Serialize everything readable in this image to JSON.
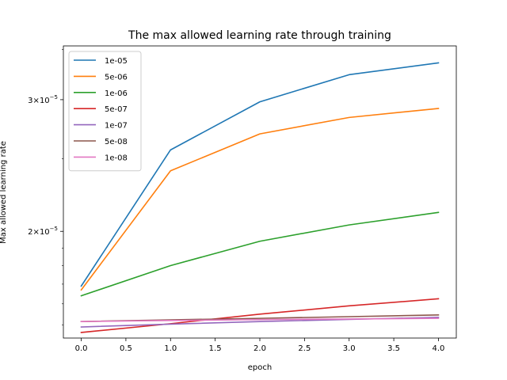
{
  "chart_data": {
    "type": "line",
    "title": "The max allowed learning rate through training",
    "xlabel": "epoch",
    "ylabel": "Max allowed learning rate",
    "x": [
      0,
      1,
      2,
      3,
      4
    ],
    "xlim": [
      -0.2,
      4.2
    ],
    "xticks": [
      0.0,
      0.5,
      1.0,
      1.5,
      2.0,
      2.5,
      3.0,
      3.5,
      4.0
    ],
    "xtick_labels": [
      "0.0",
      "0.5",
      "1.0",
      "1.5",
      "2.0",
      "2.5",
      "3.0",
      "3.5",
      "4.0"
    ],
    "yscale": "log",
    "ylim": [
      1.44e-05,
      3.54e-05
    ],
    "yticks": [
      2e-05,
      3e-05
    ],
    "ytick_labels": [
      {
        "base": "2",
        "times": "×",
        "ten": "10",
        "exp": "−5"
      },
      {
        "base": "3",
        "times": "×",
        "ten": "10",
        "exp": "−5"
      }
    ],
    "grid": false,
    "legend": "top-left",
    "series": [
      {
        "name": "1e-05",
        "color": "#1f77b4",
        "values": [
          1.69e-05,
          2.57e-05,
          2.98e-05,
          3.24e-05,
          3.36e-05
        ]
      },
      {
        "name": "5e-06",
        "color": "#ff7f0e",
        "values": [
          1.67e-05,
          2.41e-05,
          2.7e-05,
          2.84e-05,
          2.92e-05
        ]
      },
      {
        "name": "1e-06",
        "color": "#2ca02c",
        "values": [
          1.64e-05,
          1.8e-05,
          1.94e-05,
          2.04e-05,
          2.12e-05
        ]
      },
      {
        "name": "5e-07",
        "color": "#d62728",
        "values": [
          1.465e-05,
          1.505e-05,
          1.55e-05,
          1.59e-05,
          1.625e-05
        ]
      },
      {
        "name": "1e-07",
        "color": "#9467bd",
        "values": [
          1.49e-05,
          1.503e-05,
          1.515e-05,
          1.525e-05,
          1.535e-05
        ]
      },
      {
        "name": "5e-08",
        "color": "#8c564b",
        "values": [
          1.515e-05,
          1.523e-05,
          1.53e-05,
          1.538e-05,
          1.546e-05
        ]
      },
      {
        "name": "1e-08",
        "color": "#e377c2",
        "values": [
          1.515e-05,
          1.52e-05,
          1.524e-05,
          1.527e-05,
          1.53e-05
        ]
      }
    ]
  }
}
